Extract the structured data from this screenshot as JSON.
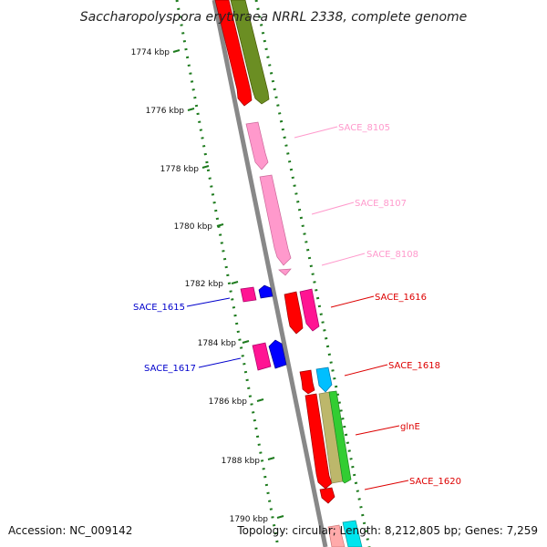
{
  "title": "Saccharopolyspora erythraea NRRL 2338, complete genome",
  "accession": "Accession: NC_009142",
  "topology_summary": "Topology: circular; Length: 8,212,805 bp; Genes: 7,259",
  "colors": {
    "backbone": "#808080",
    "dotted_track": "#1e7b1e",
    "pseudo_gene": "#ff99cc",
    "red_gene": "#ff0000",
    "magenta_gene": "#ff1493",
    "blue_gene": "#0000ff",
    "olive_gene": "#6b8e23",
    "cyan_gene": "#00bfff",
    "tan_gene": "#bdb76b",
    "green_gene": "#32cd32"
  },
  "scale": {
    "unit": "kbp",
    "ticks": [
      {
        "value": 1774,
        "label": "1774 kbp"
      },
      {
        "value": 1776,
        "label": "1776 kbp"
      },
      {
        "value": 1778,
        "label": "1778 kbp"
      },
      {
        "value": 1780,
        "label": "1780 kbp"
      },
      {
        "value": 1782,
        "label": "1782 kbp"
      },
      {
        "value": 1784,
        "label": "1784 kbp"
      },
      {
        "value": 1786,
        "label": "1786 kbp"
      },
      {
        "value": 1788,
        "label": "1788 kbp"
      },
      {
        "value": 1790,
        "label": "1790 kbp"
      }
    ]
  },
  "genes": [
    {
      "label": "SACE_8105",
      "color": "#ff99cc"
    },
    {
      "label": "SACE_8107",
      "color": "#ff99cc"
    },
    {
      "label": "SACE_8108",
      "color": "#ff99cc"
    },
    {
      "label": "SACE_1616",
      "color": "#dd0000"
    },
    {
      "label": "SACE_1615",
      "color": "#0000cc"
    },
    {
      "label": "SACE_1617",
      "color": "#0000cc"
    },
    {
      "label": "SACE_1618",
      "color": "#dd0000"
    },
    {
      "label": "glnE",
      "color": "#dd0000"
    },
    {
      "label": "SACE_1620",
      "color": "#dd0000"
    }
  ]
}
